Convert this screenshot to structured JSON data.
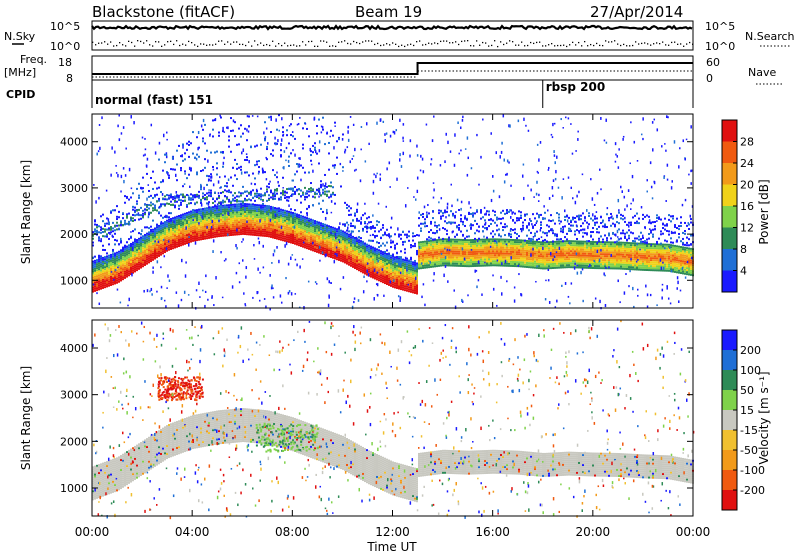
{
  "header": {
    "station": "Blackstone (fitACF)",
    "beam": "Beam 19",
    "date": "27/Apr/2014"
  },
  "labels": {
    "nsky": "N.Sky",
    "nsearch": "N.Search",
    "freq_line1": "Freq.",
    "freq_line2": "[MHz]",
    "nave": "Nave",
    "cpid": "CPID",
    "nsky_top": "10^5",
    "nsky_bottom": "10^0",
    "nsearch_top": "10^5",
    "nsearch_bottom": "10^0",
    "freq_top": "18",
    "freq_bottom": "8",
    "nave_top": "60",
    "nave_bottom": "0"
  },
  "cpid_segments": [
    {
      "label": "normal (fast) 151",
      "start_hour": 0
    },
    {
      "label": "rbsp 200",
      "start_hour": 18
    }
  ],
  "colors": {
    "power": [
      "#1a1aff",
      "#1f6fd6",
      "#2e8b57",
      "#7fd24a",
      "#f0d21a",
      "#f29a1a",
      "#f05a10",
      "#e01010"
    ],
    "velocity": [
      "#e01010",
      "#f05a10",
      "#f29a1a",
      "#f0c030",
      "#c8c8c0",
      "#7fd24a",
      "#2e8b57",
      "#1f6fd6",
      "#1a1aff"
    ]
  },
  "chart_data": [
    {
      "type": "heatmap",
      "name": "power",
      "xlabel": "Time UT",
      "ylabel": "Slant Range [km]",
      "xlim": [
        0,
        24
      ],
      "ylim": [
        400,
        4600
      ],
      "y_ticks": [
        "1000",
        "2000",
        "3000",
        "4000"
      ],
      "colorbar": {
        "label": "Power [dB]",
        "ticks": [
          "4",
          "8",
          "12",
          "16",
          "20",
          "24",
          "28"
        ],
        "range": [
          0,
          32
        ]
      },
      "features": [
        {
          "feature": "main band",
          "x": [
            0,
            1,
            2,
            3,
            4,
            5,
            6,
            7,
            8,
            9,
            10,
            11,
            12,
            13
          ],
          "y": [
            950,
            1150,
            1500,
            1850,
            2050,
            2150,
            2200,
            2150,
            2000,
            1800,
            1600,
            1300,
            1050,
            900
          ]
        },
        {
          "feature": "second band",
          "x": [
            13,
            14,
            15,
            16,
            17,
            18,
            19,
            20,
            21,
            22,
            23,
            24
          ],
          "y": [
            1450,
            1520,
            1500,
            1520,
            1500,
            1450,
            1480,
            1460,
            1450,
            1420,
            1400,
            1300
          ]
        }
      ]
    },
    {
      "type": "heatmap",
      "name": "velocity",
      "xlabel": "Time UT",
      "ylabel": "Slant Range [km]",
      "xlim": [
        0,
        24
      ],
      "ylim": [
        400,
        4600
      ],
      "x_ticks": [
        "00:00",
        "04:00",
        "08:00",
        "12:00",
        "16:00",
        "20:00",
        "00:00"
      ],
      "y_ticks": [
        "1000",
        "2000",
        "3000",
        "4000"
      ],
      "colorbar": {
        "label": "Velocity [m s⁻¹]",
        "ticks": [
          "200",
          "100",
          "50",
          "15",
          "-15",
          "-50",
          "-100",
          "-200"
        ]
      }
    }
  ]
}
